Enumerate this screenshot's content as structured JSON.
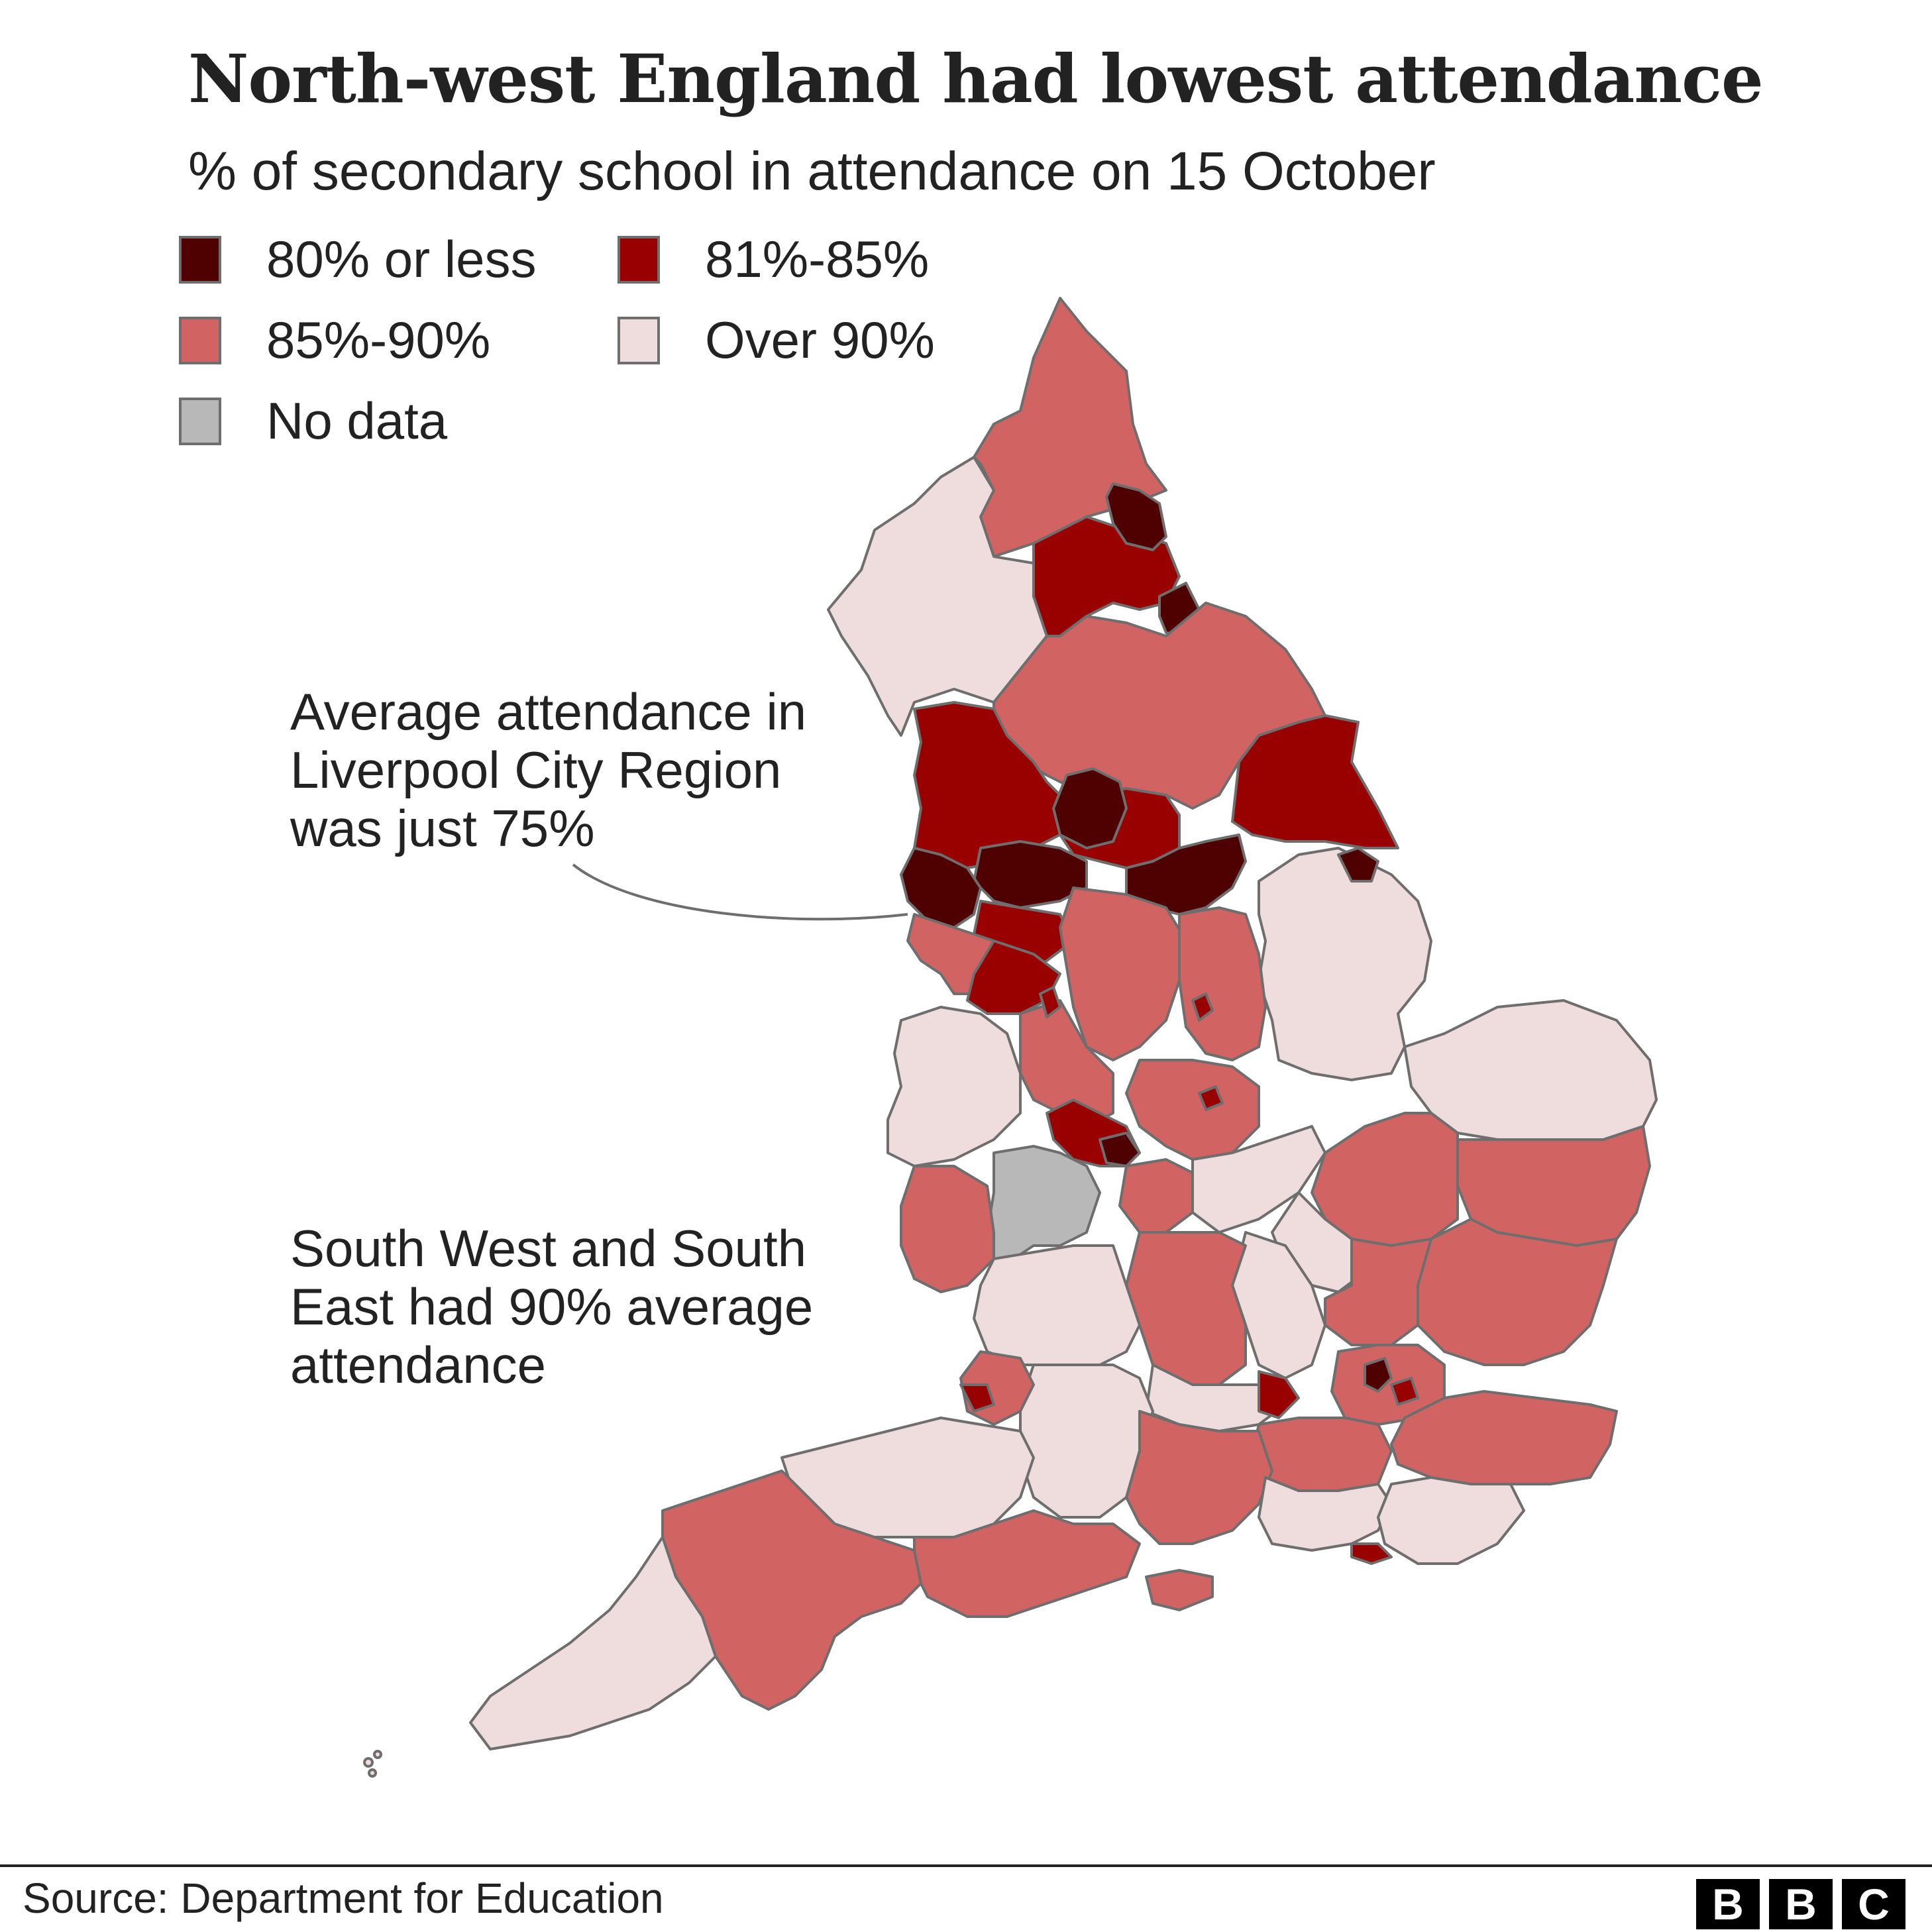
{
  "title": "North-west England had lowest attendance",
  "subtitle": "% of secondary school in attendance on 15 October",
  "legend": [
    {
      "label": "80% or less",
      "color": "#4f0000"
    },
    {
      "label": "81%-85%",
      "color": "#990000"
    },
    {
      "label": "85%-90%",
      "color": "#d26363"
    },
    {
      "label": "Over 90%",
      "color": "#efdcdc"
    },
    {
      "label": "No data",
      "color": "#b8b8b8"
    }
  ],
  "annotations": {
    "liverpool": "Average attendance in Liverpool City Region was just 75%",
    "south": "South West and South East had 90% average attendance"
  },
  "colors": {
    "border": "#6e6e6e",
    "dark": "#4f0000",
    "red": "#990000",
    "mid": "#d26363",
    "light": "#efdcdc",
    "grey": "#b8b8b8"
  },
  "footer": {
    "source": "Source: Department for Education",
    "logo": [
      "B",
      "B",
      "C"
    ]
  }
}
